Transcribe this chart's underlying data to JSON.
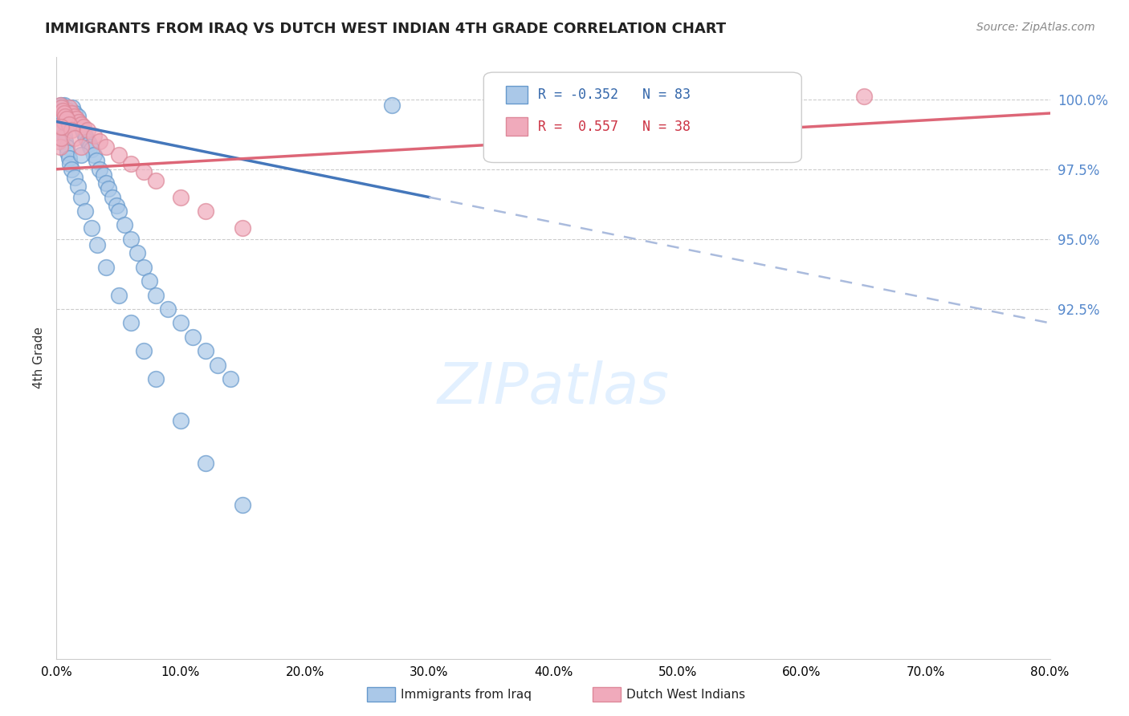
{
  "title": "IMMIGRANTS FROM IRAQ VS DUTCH WEST INDIAN 4TH GRADE CORRELATION CHART",
  "source": "Source: ZipAtlas.com",
  "ylabel": "4th Grade",
  "x_min": 0.0,
  "x_max": 80.0,
  "y_min": 80.0,
  "y_max": 101.5,
  "y_ticks": [
    100.0,
    97.5,
    95.0,
    92.5
  ],
  "x_ticks": [
    0.0,
    10.0,
    20.0,
    30.0,
    40.0,
    50.0,
    60.0,
    70.0,
    80.0
  ],
  "blue_R": -0.352,
  "blue_N": 83,
  "pink_R": 0.557,
  "pink_N": 38,
  "trend_blue_solid": "#4477BB",
  "trend_blue_dash": "#AABBDD",
  "trend_pink": "#DD6677",
  "watermark": "ZIPatlas",
  "legend_label_blue": "Immigrants from Iraq",
  "legend_label_pink": "Dutch West Indians",
  "blue_scatter_x": [
    0.3,
    0.4,
    0.5,
    0.6,
    0.7,
    0.8,
    0.9,
    1.0,
    1.1,
    1.2,
    1.3,
    1.4,
    1.5,
    1.6,
    1.7,
    1.8,
    1.9,
    2.0,
    2.1,
    2.2,
    2.3,
    2.4,
    2.5,
    2.6,
    2.7,
    2.8,
    3.0,
    3.2,
    3.5,
    3.8,
    4.0,
    4.2,
    4.5,
    4.8,
    5.0,
    5.5,
    6.0,
    6.5,
    7.0,
    7.5,
    8.0,
    9.0,
    10.0,
    11.0,
    12.0,
    13.0,
    14.0,
    0.2,
    0.3,
    0.4,
    0.5,
    0.6,
    0.7,
    0.8,
    0.9,
    1.0,
    1.1,
    1.2,
    1.5,
    1.7,
    2.0,
    2.3,
    2.8,
    3.3,
    4.0,
    5.0,
    6.0,
    7.0,
    8.0,
    10.0,
    12.0,
    15.0,
    0.4,
    0.5,
    0.6,
    0.7,
    0.8,
    0.9,
    1.0,
    2.0,
    27.0
  ],
  "blue_scatter_y": [
    99.5,
    99.6,
    99.7,
    99.8,
    99.5,
    99.6,
    99.3,
    99.4,
    99.5,
    99.6,
    99.7,
    99.4,
    99.5,
    99.3,
    99.4,
    99.2,
    99.1,
    99.0,
    98.9,
    98.8,
    98.7,
    98.6,
    98.5,
    98.4,
    98.3,
    98.2,
    98.0,
    97.8,
    97.5,
    97.3,
    97.0,
    96.8,
    96.5,
    96.2,
    96.0,
    95.5,
    95.0,
    94.5,
    94.0,
    93.5,
    93.0,
    92.5,
    92.0,
    91.5,
    91.0,
    90.5,
    90.0,
    99.2,
    99.3,
    99.1,
    98.9,
    98.7,
    98.5,
    98.3,
    98.1,
    97.9,
    97.7,
    97.5,
    97.2,
    96.9,
    96.5,
    96.0,
    95.4,
    94.8,
    94.0,
    93.0,
    92.0,
    91.0,
    90.0,
    88.5,
    87.0,
    85.5,
    99.8,
    99.7,
    99.6,
    99.5,
    99.4,
    99.3,
    99.2,
    98.0,
    99.8
  ],
  "pink_scatter_x": [
    0.2,
    0.3,
    0.4,
    0.5,
    0.6,
    0.7,
    0.8,
    0.9,
    1.0,
    1.2,
    1.4,
    1.6,
    1.8,
    2.0,
    2.2,
    2.5,
    3.0,
    3.5,
    4.0,
    5.0,
    6.0,
    7.0,
    8.0,
    10.0,
    12.0,
    15.0,
    0.3,
    0.4,
    0.5,
    0.6,
    0.7,
    0.8,
    1.0,
    1.2,
    1.5,
    2.0,
    65.0,
    0.4
  ],
  "pink_scatter_y": [
    98.5,
    98.3,
    98.6,
    99.0,
    99.2,
    99.4,
    99.5,
    99.6,
    99.7,
    99.5,
    99.4,
    99.3,
    99.2,
    99.1,
    99.0,
    98.9,
    98.7,
    98.5,
    98.3,
    98.0,
    97.7,
    97.4,
    97.1,
    96.5,
    96.0,
    95.4,
    99.8,
    99.7,
    99.6,
    99.5,
    99.4,
    99.3,
    99.1,
    98.9,
    98.6,
    98.3,
    100.1,
    99.0
  ]
}
